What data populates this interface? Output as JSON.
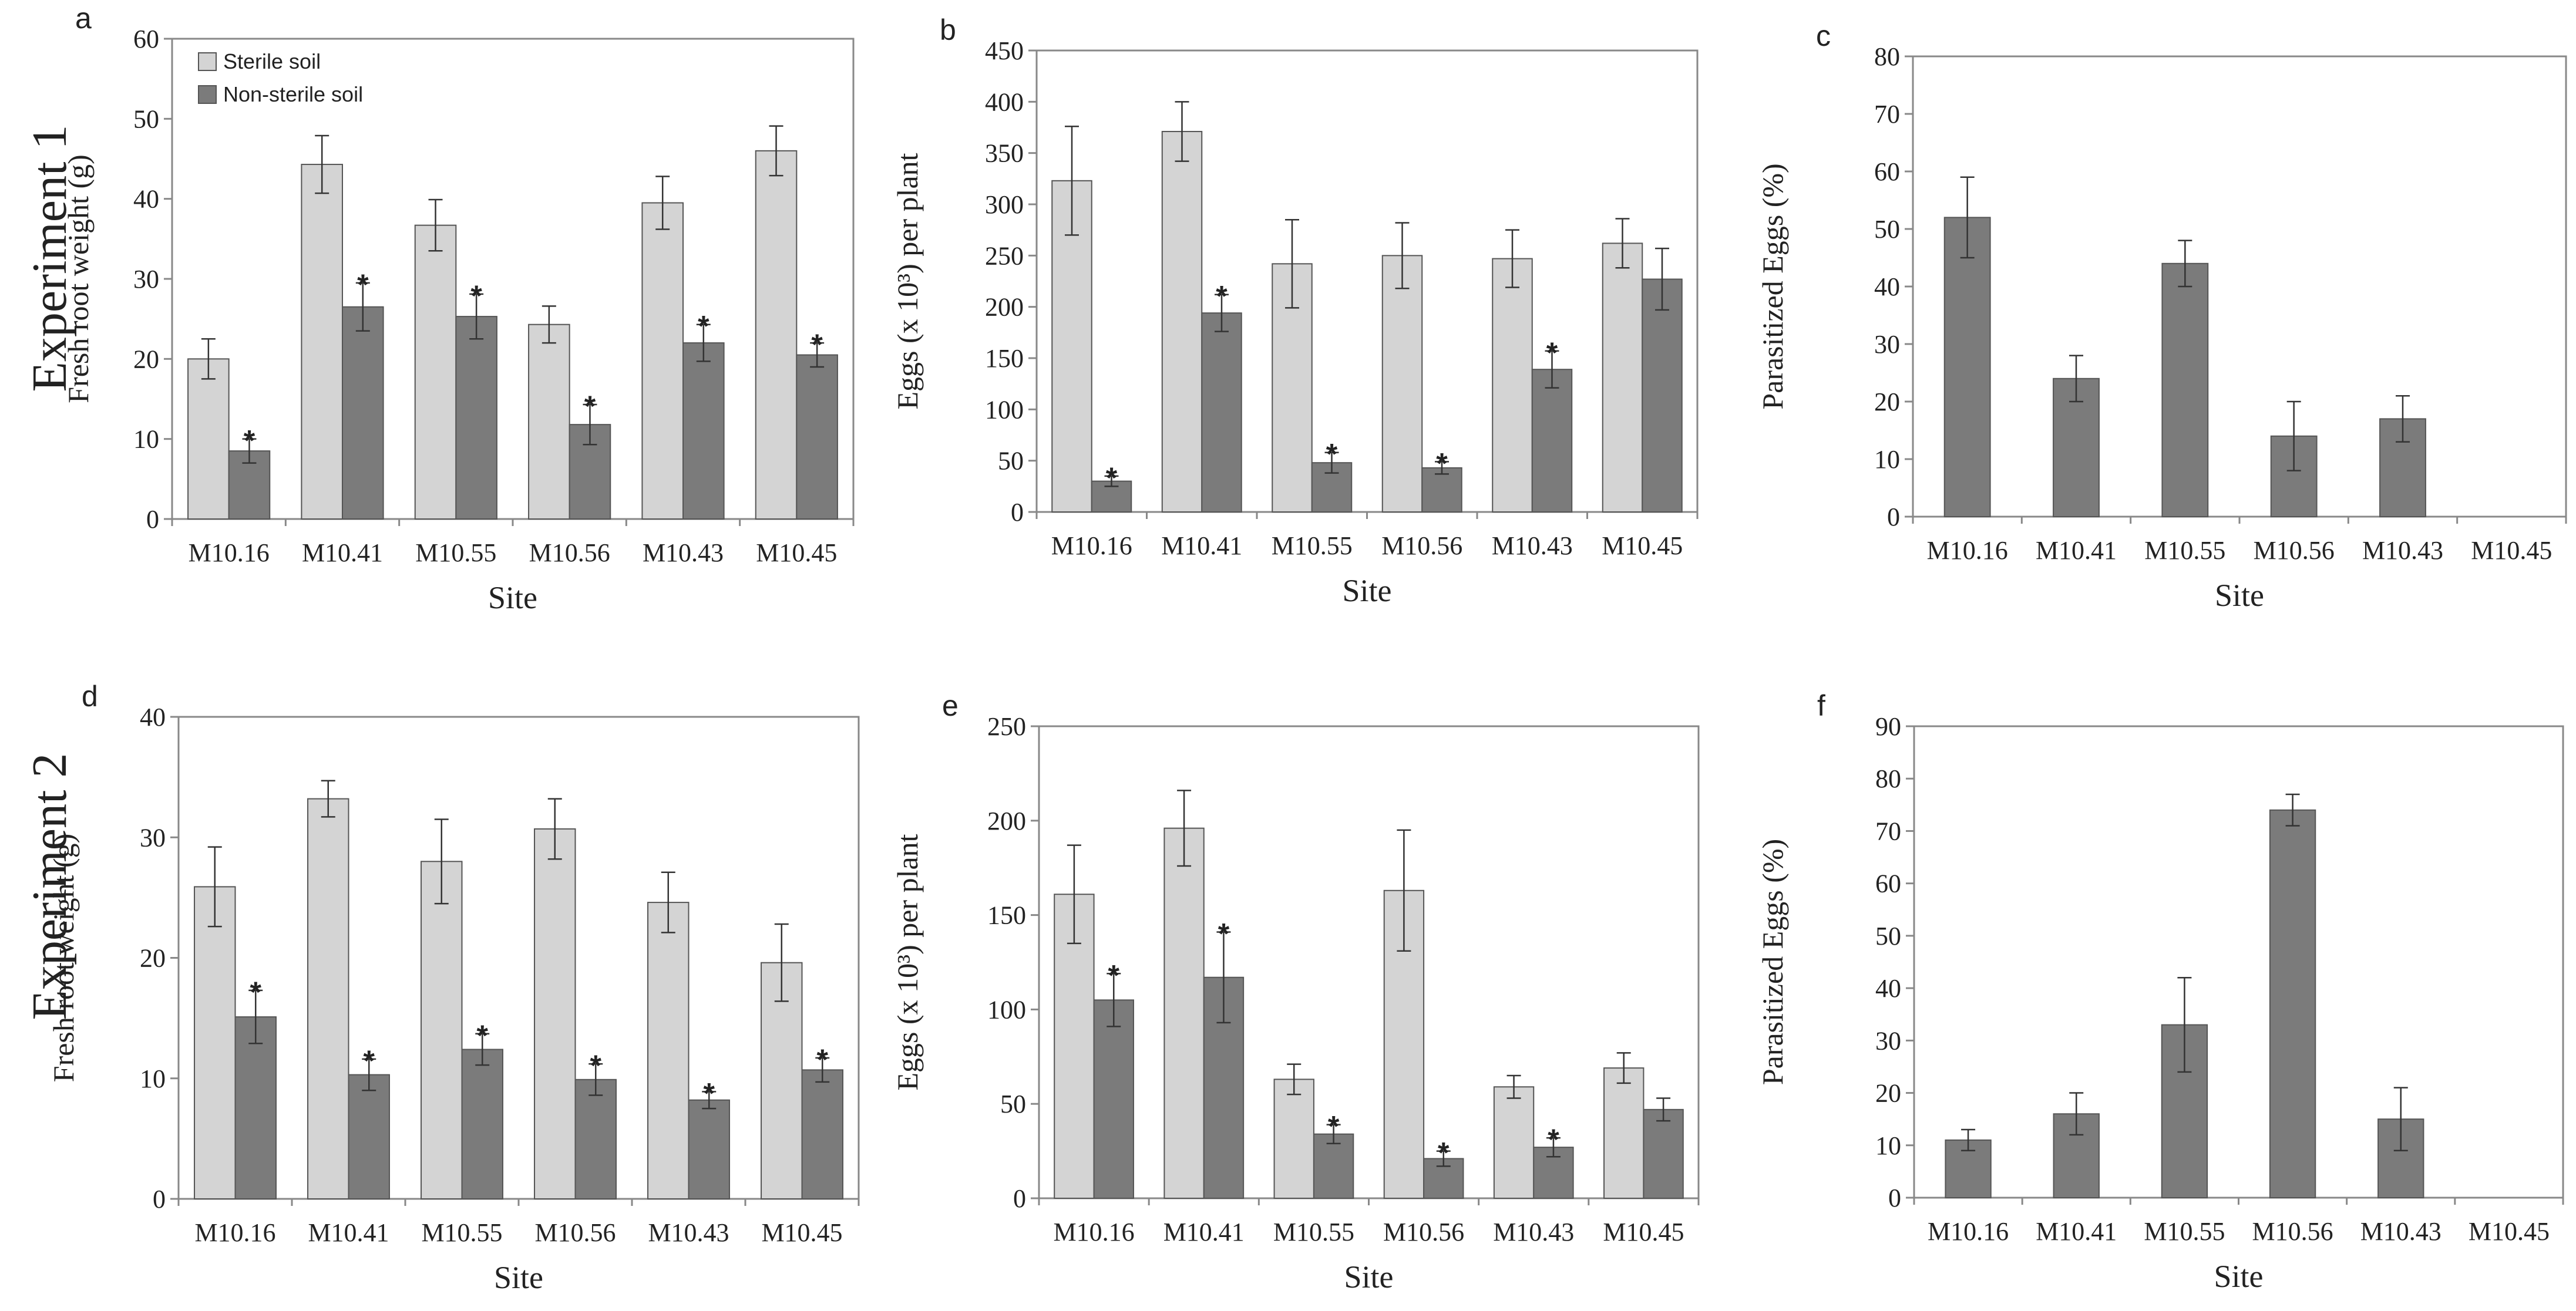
{
  "rows": [
    {
      "title": "Experiment 1"
    },
    {
      "title": "Experiment 2"
    }
  ],
  "colors": {
    "sterile": "#d4d4d4",
    "nonsterile": "#7b7b7b",
    "outline": "#555555",
    "axis": "#888888"
  },
  "chart_data": [
    {
      "panel": "a",
      "type": "bar",
      "ylabel": "Fresh root weight (g)",
      "xlabel": "Site",
      "ylim": [
        0,
        60
      ],
      "ytick_step": 10,
      "categories": [
        "M10.16",
        "M10.41",
        "M10.55",
        "M10.56",
        "M10.43",
        "M10.45"
      ],
      "legend": [
        "Sterile soil",
        "Non-sterile soil"
      ],
      "series": [
        {
          "name": "Sterile soil",
          "values": [
            20,
            44.3,
            36.7,
            24.3,
            39.5,
            46
          ],
          "errors": [
            2.5,
            3.6,
            3.2,
            2.3,
            3.3,
            3.1
          ],
          "stars": [
            false,
            false,
            false,
            false,
            false,
            false
          ]
        },
        {
          "name": "Non-sterile soil",
          "values": [
            8.5,
            26.5,
            25.3,
            11.8,
            22,
            20.5
          ],
          "errors": [
            1.5,
            3,
            2.8,
            2.5,
            2.3,
            1.5
          ],
          "stars": [
            true,
            true,
            true,
            true,
            true,
            true
          ]
        }
      ]
    },
    {
      "panel": "b",
      "type": "bar",
      "ylabel": "Eggs (x 10³) per plant",
      "xlabel": "Site",
      "ylim": [
        0,
        450
      ],
      "ytick_step": 50,
      "categories": [
        "M10.16",
        "M10.41",
        "M10.55",
        "M10.56",
        "M10.43",
        "M10.45"
      ],
      "series": [
        {
          "name": "Sterile soil",
          "values": [
            323,
            371,
            242,
            250,
            247,
            262
          ],
          "errors": [
            53,
            29,
            43,
            32,
            28,
            24
          ],
          "stars": [
            false,
            false,
            false,
            false,
            false,
            false
          ]
        },
        {
          "name": "Non-sterile soil",
          "values": [
            30,
            194,
            48,
            43,
            139,
            227
          ],
          "errors": [
            5,
            18,
            10,
            6,
            18,
            30
          ],
          "stars": [
            true,
            true,
            true,
            true,
            true,
            false
          ]
        }
      ]
    },
    {
      "panel": "c",
      "type": "bar",
      "ylabel": "Parasitized Eggs (%)",
      "xlabel": "Site",
      "ylim": [
        0,
        80
      ],
      "ytick_step": 10,
      "categories": [
        "M10.16",
        "M10.41",
        "M10.55",
        "M10.56",
        "M10.43",
        "M10.45"
      ],
      "series": [
        {
          "name": "Non-sterile soil",
          "values": [
            52,
            24,
            44,
            14,
            17,
            0
          ],
          "errors": [
            7,
            4,
            4,
            6,
            4,
            0
          ],
          "stars": [
            false,
            false,
            false,
            false,
            false,
            false
          ]
        }
      ]
    },
    {
      "panel": "d",
      "type": "bar",
      "ylabel": "Fresh root weight (g)",
      "xlabel": "Site",
      "ylim": [
        0,
        40
      ],
      "ytick_step": 10,
      "categories": [
        "M10.16",
        "M10.41",
        "M10.55",
        "M10.56",
        "M10.43",
        "M10.45"
      ],
      "series": [
        {
          "name": "Sterile soil",
          "values": [
            25.9,
            33.2,
            28,
            30.7,
            24.6,
            19.6
          ],
          "errors": [
            3.3,
            1.5,
            3.5,
            2.5,
            2.5,
            3.2
          ],
          "stars": [
            false,
            false,
            false,
            false,
            false,
            false
          ]
        },
        {
          "name": "Non-sterile soil",
          "values": [
            15.1,
            10.3,
            12.4,
            9.9,
            8.2,
            10.7
          ],
          "errors": [
            2.2,
            1.3,
            1.3,
            1.3,
            0.7,
            1
          ],
          "stars": [
            true,
            true,
            true,
            true,
            true,
            true
          ]
        }
      ]
    },
    {
      "panel": "e",
      "type": "bar",
      "ylabel": "Eggs (x 10³) per plant",
      "xlabel": "Site",
      "ylim": [
        0,
        250
      ],
      "ytick_step": 50,
      "categories": [
        "M10.16",
        "M10.41",
        "M10.55",
        "M10.56",
        "M10.43",
        "M10.45"
      ],
      "series": [
        {
          "name": "Sterile soil",
          "values": [
            161,
            196,
            63,
            163,
            59,
            69
          ],
          "errors": [
            26,
            20,
            8,
            32,
            6,
            8
          ],
          "stars": [
            false,
            false,
            false,
            false,
            false,
            false
          ]
        },
        {
          "name": "Non-sterile soil",
          "values": [
            105,
            117,
            34,
            21,
            27,
            47
          ],
          "errors": [
            14,
            24,
            5,
            4,
            5,
            6
          ],
          "stars": [
            true,
            true,
            true,
            true,
            true,
            false
          ]
        }
      ]
    },
    {
      "panel": "f",
      "type": "bar",
      "ylabel": "Parasitized Eggs (%)",
      "xlabel": "Site",
      "ylim": [
        0,
        90
      ],
      "ytick_step": 10,
      "categories": [
        "M10.16",
        "M10.41",
        "M10.55",
        "M10.56",
        "M10.43",
        "M10.45"
      ],
      "series": [
        {
          "name": "Non-sterile soil",
          "values": [
            11,
            16,
            33,
            74,
            15,
            0
          ],
          "errors": [
            2,
            4,
            9,
            3,
            6,
            0
          ],
          "stars": [
            false,
            false,
            false,
            false,
            false,
            false
          ]
        }
      ]
    }
  ]
}
